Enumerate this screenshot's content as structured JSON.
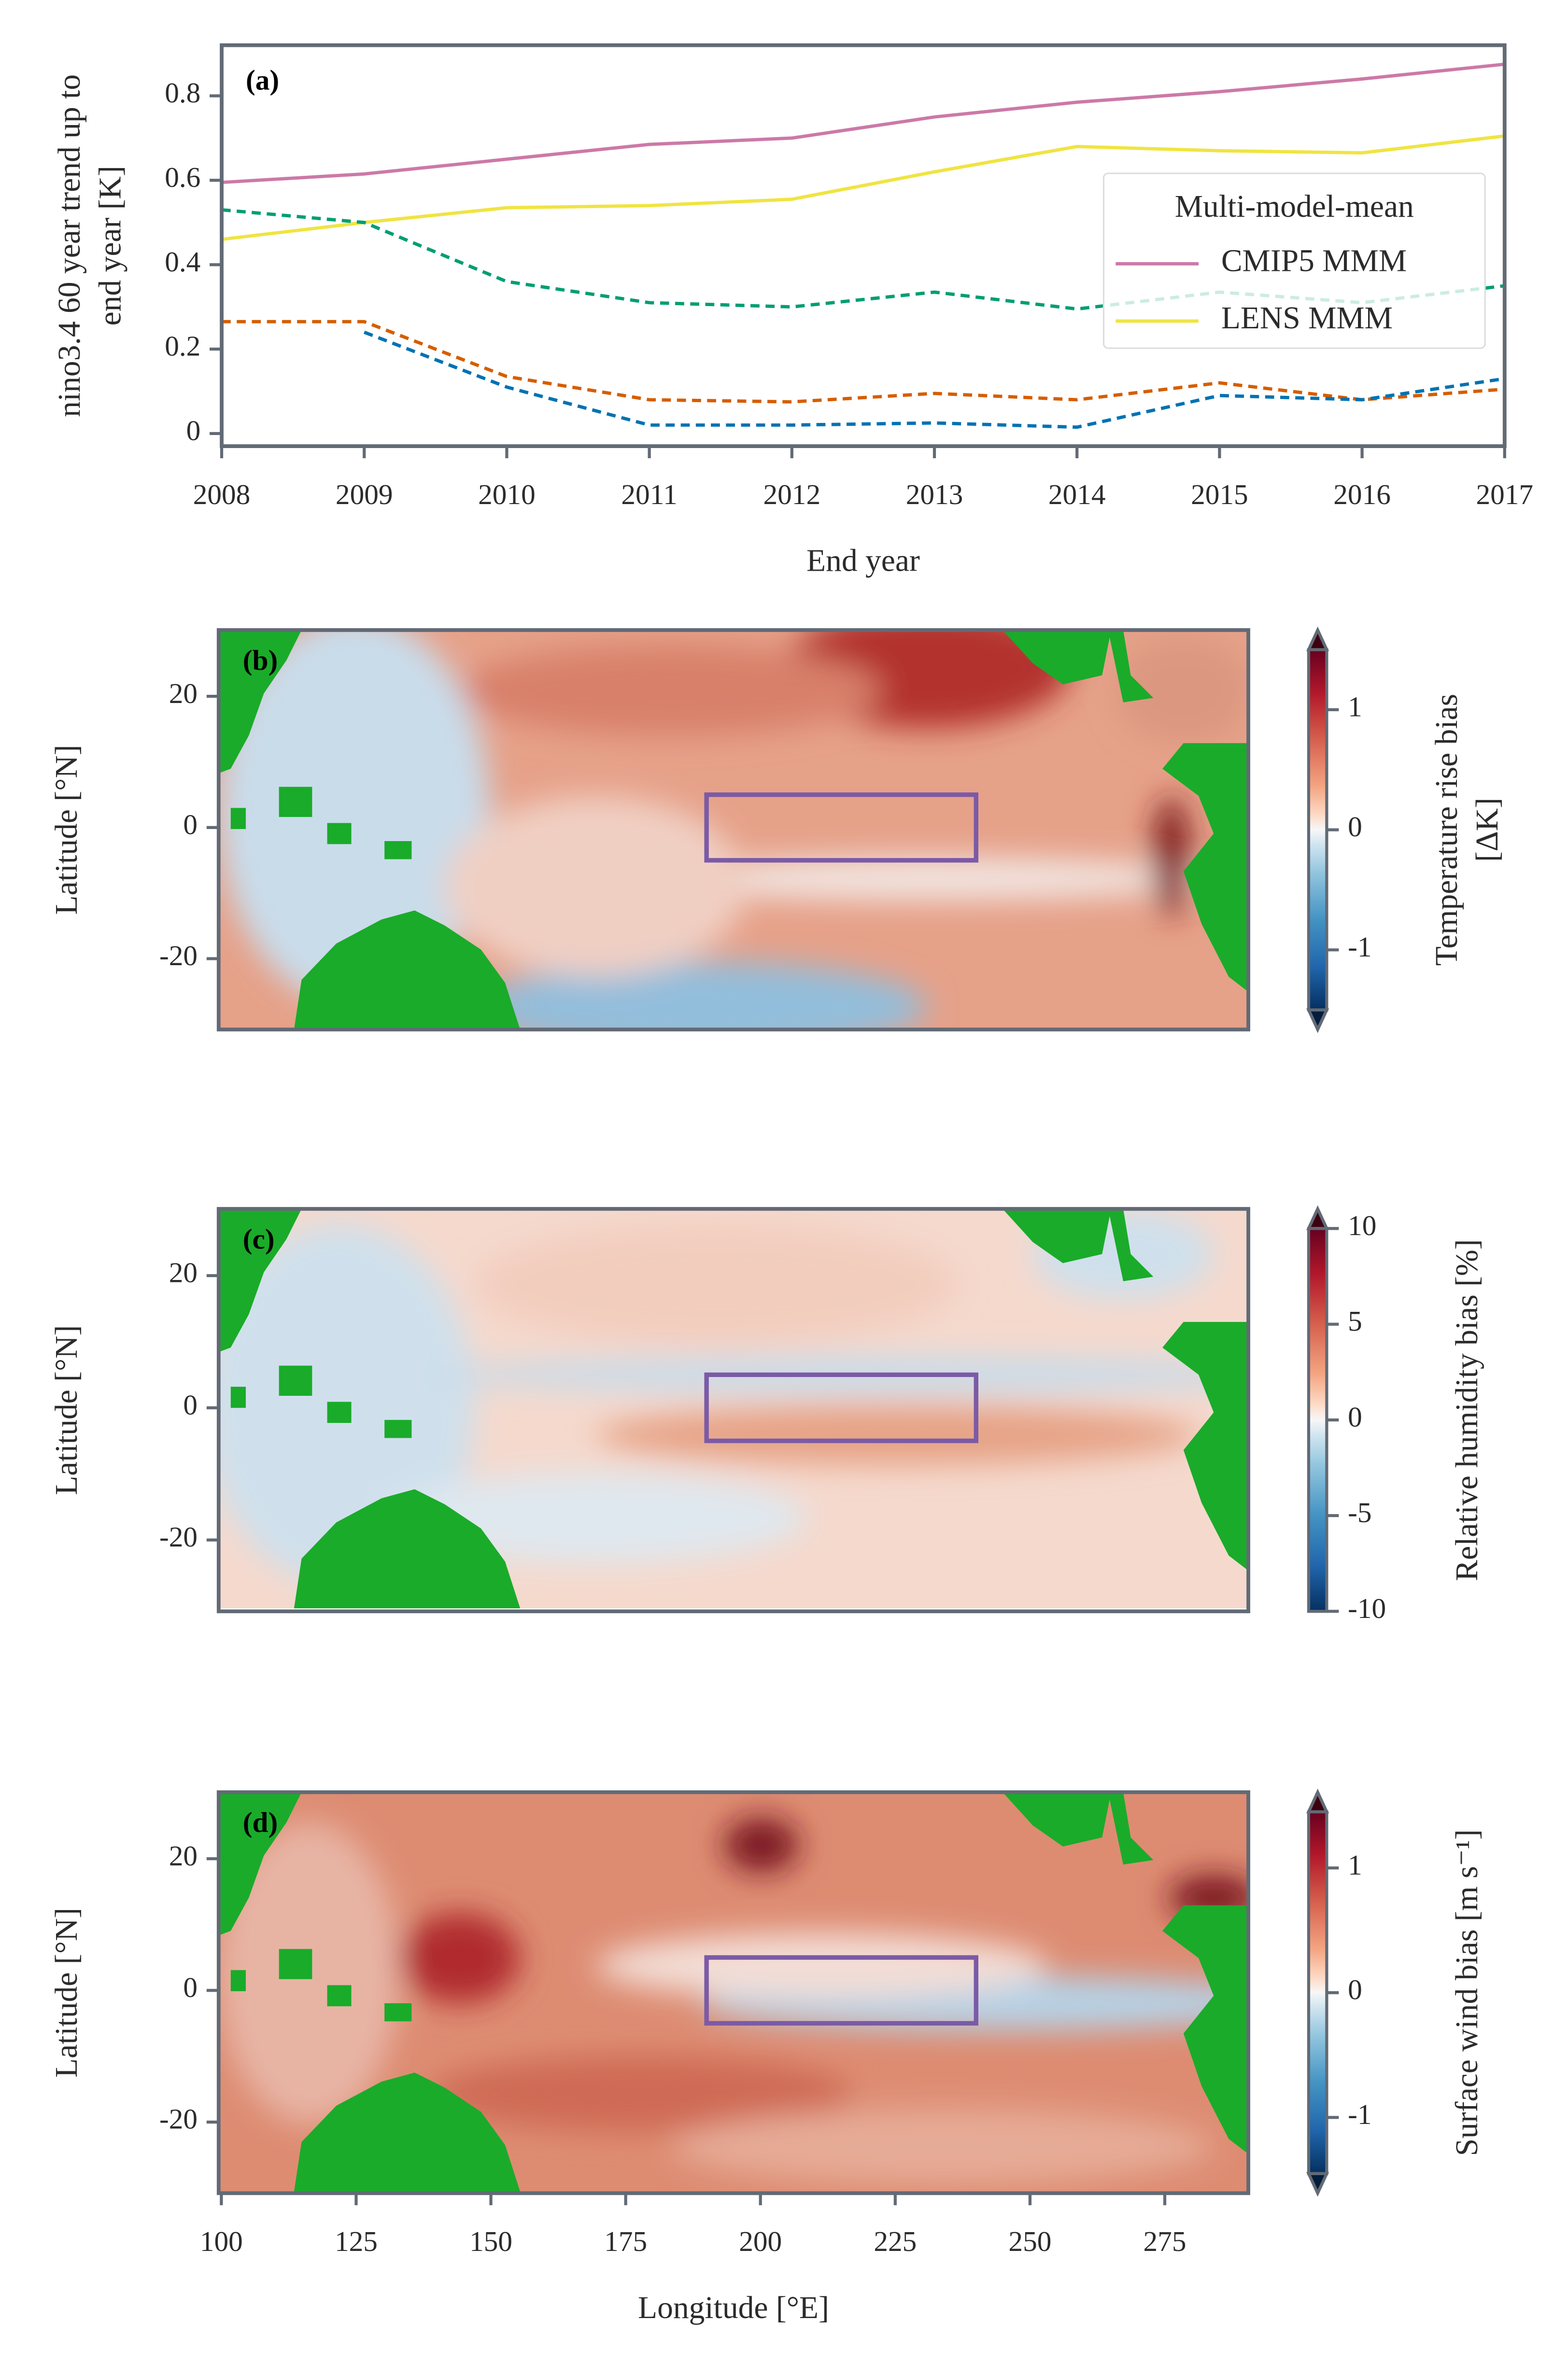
{
  "chart_data": [
    {
      "type": "line",
      "label": "(a)",
      "xlabel": "End year",
      "ylabel": [
        "nino3.4 60 year trend up to",
        "end year [K]"
      ],
      "x": [
        2008,
        2009,
        2010,
        2011,
        2012,
        2013,
        2014,
        2015,
        2016,
        2017
      ],
      "xlim": [
        2008,
        2017
      ],
      "xticks": [
        2008,
        2009,
        2010,
        2011,
        2012,
        2013,
        2014,
        2015,
        2016,
        2017
      ],
      "ylim": [
        -0.03,
        0.92
      ],
      "yticks": [
        0.0,
        0.2,
        0.4,
        0.6,
        0.8
      ],
      "legend": {
        "title": "Multi-model-mean",
        "loc": "center right"
      },
      "series": [
        {
          "name": "CMIP5 MMM",
          "color": "#cc79a7",
          "dashed": false,
          "values": [
            0.595,
            0.615,
            0.65,
            0.685,
            0.7,
            0.75,
            0.785,
            0.81,
            0.84,
            0.875
          ]
        },
        {
          "name": "LENS MMM",
          "color": "#f0e442",
          "dashed": false,
          "values": [
            0.46,
            0.5,
            0.535,
            0.54,
            0.555,
            0.62,
            0.68,
            0.67,
            0.665,
            0.705
          ]
        },
        {
          "color": "#009e73",
          "dashed": true,
          "values": [
            0.53,
            0.5,
            0.36,
            0.31,
            0.3,
            0.335,
            0.295,
            0.335,
            0.31,
            0.35
          ]
        },
        {
          "color": "#d55e00",
          "dashed": true,
          "values": [
            0.265,
            0.265,
            0.135,
            0.08,
            0.075,
            0.095,
            0.08,
            0.12,
            0.08,
            0.105
          ]
        },
        {
          "color": "#0072b2",
          "dashed": true,
          "values": [
            null,
            0.24,
            0.11,
            0.02,
            0.02,
            0.025,
            0.015,
            0.09,
            0.08,
            0.13
          ]
        }
      ]
    },
    {
      "type": "heatmap",
      "label": "(b)",
      "ylabel": "Latitude [°N]",
      "xlim": [
        99.5,
        290.5
      ],
      "ylim": [
        -30.8,
        30.1
      ],
      "yticks": [
        20,
        0,
        -20
      ],
      "region": {
        "lon": [
          190,
          240
        ],
        "lat": [
          -5,
          5
        ],
        "color": "#7b5aa6"
      },
      "colorbar": {
        "label": [
          "Temperature rise bias",
          "[ΔK]"
        ],
        "lim": [
          -1.5,
          1.5
        ],
        "ticks": [
          1,
          0,
          -1
        ],
        "extend": "both"
      }
    },
    {
      "type": "heatmap",
      "label": "(c)",
      "ylabel": "Latitude [°N]",
      "xlim": [
        99.5,
        290.5
      ],
      "ylim": [
        -30.8,
        30.1
      ],
      "yticks": [
        20,
        0,
        -20
      ],
      "region": {
        "lon": [
          190,
          240
        ],
        "lat": [
          -5,
          5
        ],
        "color": "#7b5aa6"
      },
      "colorbar": {
        "label": [
          "Relative humidity bias [%]"
        ],
        "lim": [
          -10,
          10
        ],
        "ticks": [
          10,
          5,
          0,
          -5,
          -10
        ],
        "extend": "max"
      }
    },
    {
      "type": "heatmap",
      "label": "(d)",
      "ylabel": "Latitude [°N]",
      "xlabel": "Longitude [°E]",
      "xlim": [
        99.5,
        290.5
      ],
      "ylim": [
        -30.8,
        30.1
      ],
      "yticks": [
        20,
        0,
        -20
      ],
      "xticks": [
        100,
        125,
        150,
        175,
        200,
        225,
        250,
        275
      ],
      "region": {
        "lon": [
          190,
          240
        ],
        "lat": [
          -5,
          5
        ],
        "color": "#7b5aa6"
      },
      "colorbar": {
        "label": [
          "Surface wind bias [m s⁻¹]"
        ],
        "lim": [
          -1.45,
          1.45
        ],
        "ticks": [
          1,
          0,
          -1
        ],
        "extend": "both"
      }
    }
  ]
}
